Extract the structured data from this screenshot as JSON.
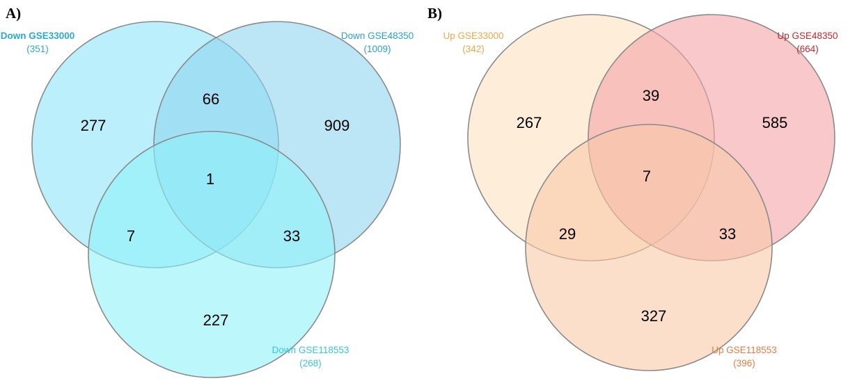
{
  "panels": [
    {
      "label": "A)",
      "sets": [
        {
          "name": "Down GSE33000",
          "total": "(351)",
          "fill": "#8ee5fa",
          "label_color": "#29a9d6"
        },
        {
          "name": "Down GSE48350",
          "total": "(1009)",
          "fill": "#8fd3f0",
          "label_color": "#29a0cf"
        },
        {
          "name": "Down GSE118553",
          "total": "(268)",
          "fill": "#8ff2fa",
          "label_color": "#35c6e0"
        }
      ],
      "regions": {
        "only_1": "277",
        "only_2": "909",
        "only_3": "227",
        "one_two": "66",
        "one_three": "7",
        "two_three": "33",
        "all": "1"
      }
    },
    {
      "label": "B)",
      "sets": [
        {
          "name": "Up GSE33000",
          "total": "(342)",
          "fill": "#fde3c0",
          "label_color": "#f0a64a"
        },
        {
          "name": "Up GSE48350",
          "total": "(664)",
          "fill": "#f4a3a6",
          "label_color": "#d0232a"
        },
        {
          "name": "Up GSE118553",
          "total": "(396)",
          "fill": "#f9c9a9",
          "label_color": "#ec7a3e"
        }
      ],
      "regions": {
        "only_1": "267",
        "only_2": "585",
        "only_3": "327",
        "one_two": "39",
        "one_three": "29",
        "two_three": "33",
        "all": "7"
      }
    }
  ]
}
